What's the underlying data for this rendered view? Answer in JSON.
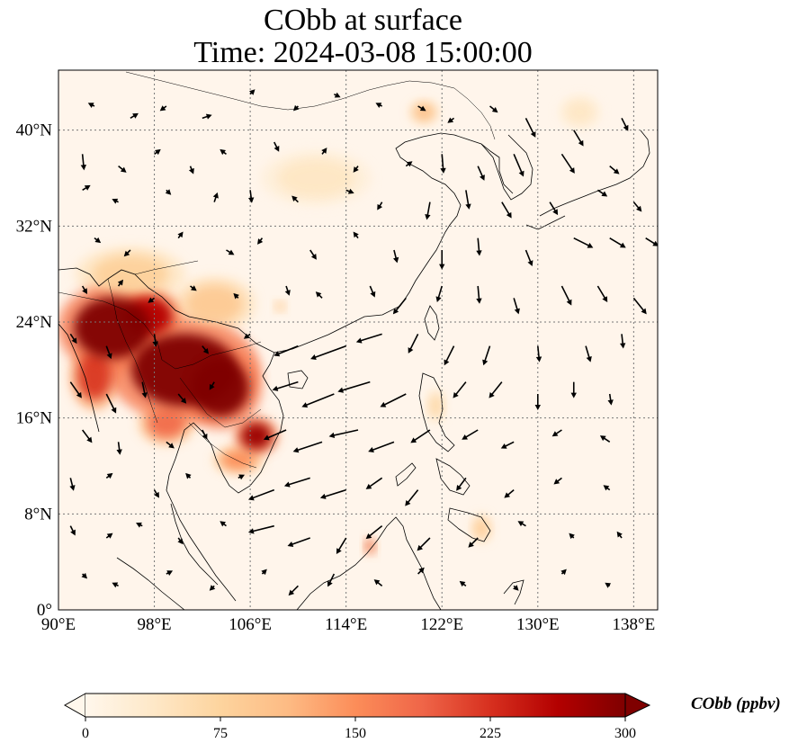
{
  "title": {
    "line1": "CObb at surface",
    "line2": "Time: 2024-03-08 15:00:00"
  },
  "map": {
    "lon_range": [
      90,
      140
    ],
    "lat_range": [
      0,
      45
    ],
    "lon_ticks": [
      {
        "value": 90,
        "label": "90°E"
      },
      {
        "value": 98,
        "label": "98°E"
      },
      {
        "value": 106,
        "label": "106°E"
      },
      {
        "value": 114,
        "label": "114°E"
      },
      {
        "value": 122,
        "label": "122°E"
      },
      {
        "value": 130,
        "label": "130°E"
      },
      {
        "value": 138,
        "label": "138°E"
      }
    ],
    "lat_ticks": [
      {
        "value": 0,
        "label": "0°"
      },
      {
        "value": 8,
        "label": "8°N"
      },
      {
        "value": 16,
        "label": "16°N"
      },
      {
        "value": 24,
        "label": "24°N"
      },
      {
        "value": 32,
        "label": "32°N"
      },
      {
        "value": 40,
        "label": "40°N"
      }
    ],
    "gridlines": true,
    "background_color": "#fff5eb",
    "field_variable": "CObb",
    "vectors": "wind (arrows)",
    "plumes": [
      {
        "lon": 94.5,
        "lat": 23.5,
        "rx": 4.0,
        "ry": 3.2,
        "value": 300
      },
      {
        "lon": 100.5,
        "lat": 20.0,
        "rx": 5.5,
        "ry": 3.8,
        "value": 300
      },
      {
        "lon": 103.5,
        "lat": 18.5,
        "rx": 3.0,
        "ry": 3.0,
        "value": 300
      },
      {
        "lon": 106.5,
        "lat": 14.5,
        "rx": 1.6,
        "ry": 1.4,
        "value": 280
      },
      {
        "lon": 97.5,
        "lat": 24.5,
        "rx": 2.5,
        "ry": 2.0,
        "value": 260
      },
      {
        "lon": 93.0,
        "lat": 19.5,
        "rx": 1.8,
        "ry": 2.5,
        "value": 220
      },
      {
        "lon": 99.0,
        "lat": 15.5,
        "rx": 2.0,
        "ry": 1.5,
        "value": 180
      },
      {
        "lon": 105.0,
        "lat": 12.5,
        "rx": 1.8,
        "ry": 1.0,
        "value": 150
      },
      {
        "lon": 96.0,
        "lat": 28.0,
        "rx": 4.0,
        "ry": 2.0,
        "value": 80
      },
      {
        "lon": 103.0,
        "lat": 25.5,
        "rx": 3.0,
        "ry": 2.0,
        "value": 90
      },
      {
        "lon": 120.5,
        "lat": 41.5,
        "rx": 1.0,
        "ry": 0.8,
        "value": 110
      },
      {
        "lon": 116.0,
        "lat": 5.3,
        "rx": 0.4,
        "ry": 0.6,
        "value": 200
      },
      {
        "lon": 125.3,
        "lat": 6.8,
        "rx": 0.7,
        "ry": 1.0,
        "value": 90
      },
      {
        "lon": 121.5,
        "lat": 17.0,
        "rx": 0.6,
        "ry": 1.2,
        "value": 70
      },
      {
        "lon": 111.5,
        "lat": 36.0,
        "rx": 4.0,
        "ry": 2.0,
        "value": 40
      },
      {
        "lon": 133.5,
        "lat": 41.5,
        "rx": 1.5,
        "ry": 1.2,
        "value": 40
      },
      {
        "lon": 108.5,
        "lat": 25.3,
        "rx": 0.4,
        "ry": 0.4,
        "value": 100
      }
    ],
    "wind_vectors": [
      [
        93,
        42,
        -0.4,
        0.2
      ],
      [
        96,
        41,
        0.5,
        0.3
      ],
      [
        99,
        42,
        -0.4,
        -0.3
      ],
      [
        102,
        41,
        0.6,
        0.2
      ],
      [
        106,
        43,
        0.3,
        0.3
      ],
      [
        110,
        42,
        -0.3,
        -0.3
      ],
      [
        113,
        43,
        0.4,
        -0.2
      ],
      [
        117,
        42,
        -0.4,
        0.2
      ],
      [
        120,
        42,
        0.5,
        -0.3
      ],
      [
        123,
        41,
        -0.4,
        -0.3
      ],
      [
        126,
        42,
        0.5,
        -0.4
      ],
      [
        129,
        41,
        0.6,
        -1.2
      ],
      [
        133,
        40,
        0.6,
        -1.0
      ],
      [
        137,
        41,
        0.4,
        -0.8
      ],
      [
        92,
        38,
        0.1,
        -1.0
      ],
      [
        95,
        37,
        0.5,
        -0.4
      ],
      [
        98,
        38,
        0.4,
        0.3
      ],
      [
        101,
        37,
        0.2,
        -0.5
      ],
      [
        104,
        38,
        -0.4,
        0.3
      ],
      [
        108,
        39,
        0.3,
        -0.6
      ],
      [
        112,
        38,
        0.3,
        0.4
      ],
      [
        115,
        37,
        -0.3,
        -0.4
      ],
      [
        119,
        37,
        0.4,
        0.3
      ],
      [
        122,
        38,
        0.1,
        -1.2
      ],
      [
        125,
        37,
        0.4,
        -0.9
      ],
      [
        128,
        38,
        0.6,
        -1.4
      ],
      [
        132,
        38,
        0.8,
        -1.2
      ],
      [
        136,
        37,
        0.6,
        -0.5
      ],
      [
        92,
        35,
        0.5,
        0.3
      ],
      [
        95,
        34,
        -0.4,
        0.2
      ],
      [
        99,
        35,
        0.3,
        -0.3
      ],
      [
        103,
        34,
        0.2,
        0.6
      ],
      [
        106,
        35,
        0.1,
        -0.8
      ],
      [
        110,
        34,
        -0.4,
        0.4
      ],
      [
        114,
        35,
        0.5,
        -0.2
      ],
      [
        117,
        34,
        -0.3,
        -0.5
      ],
      [
        121,
        34,
        -0.2,
        -1.1
      ],
      [
        124,
        35,
        0.2,
        -1.2
      ],
      [
        127,
        34,
        0.6,
        -1.0
      ],
      [
        131,
        34,
        0.5,
        -0.8
      ],
      [
        135,
        35,
        0.6,
        -0.4
      ],
      [
        138,
        34,
        0.5,
        -0.6
      ],
      [
        93,
        31,
        0.4,
        -0.3
      ],
      [
        96,
        30,
        -0.4,
        -0.4
      ],
      [
        100,
        31,
        0.3,
        0.4
      ],
      [
        104,
        30,
        0.5,
        -0.3
      ],
      [
        107,
        31,
        -0.3,
        -0.4
      ],
      [
        111,
        30,
        0.4,
        -0.6
      ],
      [
        115,
        31,
        -0.3,
        0.4
      ],
      [
        118,
        30,
        0.2,
        -0.8
      ],
      [
        122,
        30,
        0.0,
        -1.2
      ],
      [
        125,
        31,
        0.1,
        -1.1
      ],
      [
        129,
        30,
        0.4,
        -1.0
      ],
      [
        133,
        31,
        1.2,
        -0.6
      ],
      [
        136,
        31,
        1.0,
        -0.6
      ],
      [
        139,
        31,
        0.8,
        -0.5
      ],
      [
        92,
        27,
        0.3,
        -0.5
      ],
      [
        95,
        27,
        0.3,
        0.4
      ],
      [
        98,
        26,
        -0.4,
        -0.3
      ],
      [
        101,
        27,
        0.4,
        -0.3
      ],
      [
        105,
        26,
        -0.3,
        0.3
      ],
      [
        109,
        27,
        0.2,
        -0.6
      ],
      [
        112,
        26,
        -0.4,
        0.4
      ],
      [
        116,
        27,
        0.3,
        -0.7
      ],
      [
        119,
        26,
        -0.8,
        -1.0
      ],
      [
        122,
        27,
        -0.3,
        -1.0
      ],
      [
        125,
        27,
        0.1,
        -1.1
      ],
      [
        128,
        26,
        0.3,
        -1.0
      ],
      [
        132,
        27,
        0.6,
        -1.2
      ],
      [
        135,
        27,
        0.6,
        -1.0
      ],
      [
        138,
        26,
        0.8,
        -1.0
      ],
      [
        91,
        23,
        0.4,
        -0.6
      ],
      [
        94,
        22,
        0.3,
        -0.8
      ],
      [
        98,
        23,
        0.1,
        -0.8
      ],
      [
        102,
        22,
        0.4,
        -0.5
      ],
      [
        106,
        23,
        -0.4,
        -0.3
      ],
      [
        110,
        22,
        -1.5,
        -0.6
      ],
      [
        114,
        22,
        -2.2,
        -0.8
      ],
      [
        117,
        23,
        -1.6,
        -0.5
      ],
      [
        120,
        23,
        -0.6,
        -1.2
      ],
      [
        123,
        22,
        -0.6,
        -1.2
      ],
      [
        126,
        22,
        -0.4,
        -1.2
      ],
      [
        130,
        22,
        0.1,
        -1.0
      ],
      [
        134,
        22,
        0.3,
        -1.0
      ],
      [
        137,
        23,
        0.1,
        -0.9
      ],
      [
        91,
        19,
        0.7,
        -1.0
      ],
      [
        94,
        18,
        0.6,
        -1.2
      ],
      [
        97,
        19,
        0.2,
        -1.0
      ],
      [
        100,
        18,
        0.5,
        -0.6
      ],
      [
        103,
        19,
        -0.3,
        -0.5
      ],
      [
        110,
        19,
        -1.6,
        -0.5
      ],
      [
        113,
        18,
        -2.0,
        -0.8
      ],
      [
        116,
        19,
        -2.0,
        -0.6
      ],
      [
        119,
        18,
        -1.6,
        -0.8
      ],
      [
        124,
        19,
        -0.8,
        -1.0
      ],
      [
        127,
        19,
        -0.8,
        -1.0
      ],
      [
        130,
        18,
        0.0,
        -1.0
      ],
      [
        133,
        19,
        0.0,
        -1.0
      ],
      [
        136,
        18,
        0.1,
        -0.7
      ],
      [
        92,
        15,
        0.6,
        -0.8
      ],
      [
        95,
        14,
        0.1,
        -0.8
      ],
      [
        99,
        14,
        0.5,
        -0.4
      ],
      [
        102,
        15,
        0.3,
        -0.6
      ],
      [
        109,
        15,
        -1.4,
        -0.6
      ],
      [
        112,
        14,
        -1.8,
        -0.6
      ],
      [
        115,
        15,
        -1.8,
        -0.4
      ],
      [
        118,
        14,
        -1.6,
        -0.6
      ],
      [
        121,
        15,
        -1.2,
        -0.8
      ],
      [
        125,
        15,
        -1.0,
        -0.6
      ],
      [
        128,
        14,
        -0.8,
        -0.4
      ],
      [
        132,
        15,
        -0.6,
        -0.4
      ],
      [
        136,
        14,
        -0.6,
        0.4
      ],
      [
        91,
        11,
        0.2,
        -0.8
      ],
      [
        94,
        11,
        0.4,
        0.3
      ],
      [
        98,
        10,
        0.3,
        -0.5
      ],
      [
        101,
        11,
        -0.3,
        0.3
      ],
      [
        105,
        11,
        0.4,
        0.2
      ],
      [
        108,
        10,
        -1.6,
        -0.6
      ],
      [
        111,
        11,
        -1.6,
        -0.5
      ],
      [
        114,
        10,
        -1.6,
        -0.5
      ],
      [
        117,
        11,
        -1.0,
        -0.7
      ],
      [
        120,
        10,
        -0.8,
        -1.0
      ],
      [
        124,
        11,
        -0.6,
        -0.8
      ],
      [
        128,
        10,
        -0.6,
        -0.5
      ],
      [
        132,
        11,
        -0.5,
        -0.4
      ],
      [
        136,
        10,
        -0.4,
        0.3
      ],
      [
        91,
        7,
        0.3,
        -0.6
      ],
      [
        94,
        6,
        0.4,
        0.3
      ],
      [
        97,
        7,
        -0.4,
        0.2
      ],
      [
        100,
        6,
        0.3,
        -0.4
      ],
      [
        104,
        7,
        -0.4,
        0.3
      ],
      [
        108,
        7,
        -1.6,
        -0.4
      ],
      [
        111,
        6,
        -1.4,
        -0.5
      ],
      [
        114,
        6,
        -0.6,
        -1.0
      ],
      [
        117,
        7,
        -1.0,
        -0.8
      ],
      [
        121,
        6,
        -0.8,
        -0.8
      ],
      [
        125,
        6,
        -0.6,
        -0.6
      ],
      [
        129,
        7,
        -0.5,
        0.3
      ],
      [
        133,
        6,
        -0.3,
        0.3
      ],
      [
        137,
        6,
        -0.3,
        0.4
      ],
      [
        92,
        3,
        0.3,
        -0.3
      ],
      [
        95,
        2,
        -0.4,
        0.2
      ],
      [
        99,
        3,
        0.4,
        0.2
      ],
      [
        103,
        2,
        -0.3,
        -0.3
      ],
      [
        107,
        3,
        0.3,
        0.3
      ],
      [
        110,
        2,
        -0.6,
        -0.6
      ],
      [
        113,
        3,
        -0.4,
        -0.8
      ],
      [
        117,
        2,
        -0.5,
        0.4
      ],
      [
        120,
        3,
        0.4,
        0.4
      ],
      [
        124,
        2,
        -0.4,
        0.3
      ],
      [
        128,
        2,
        0.3,
        -0.3
      ],
      [
        132,
        3,
        0.3,
        0.3
      ],
      [
        136,
        2,
        -0.3,
        0.2
      ]
    ]
  },
  "colorbar": {
    "label": "CObb (ppbv)",
    "min": 0,
    "max": 300,
    "extend": "both",
    "colormap": "OrRd",
    "ticks": [
      {
        "value": 0,
        "label": "0"
      },
      {
        "value": 75,
        "label": "75"
      },
      {
        "value": 150,
        "label": "150"
      },
      {
        "value": 225,
        "label": "225"
      },
      {
        "value": 300,
        "label": "300"
      }
    ],
    "stops": [
      "#fff7ec",
      "#fee8c8",
      "#fdd49e",
      "#fdbb84",
      "#fc8d59",
      "#ef6548",
      "#d7301f",
      "#b30000",
      "#7f0000"
    ]
  }
}
